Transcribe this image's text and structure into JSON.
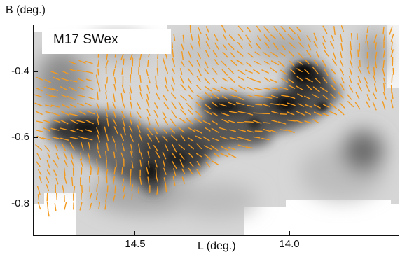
{
  "figure": {
    "map_label": "M17 SWex",
    "y_axis_label": "B (deg.)",
    "x_axis_label": "L (deg.)",
    "y_ticks": [
      "-0.4",
      "-0.6",
      "-0.8"
    ],
    "x_ticks": [
      "14.5",
      "14.0"
    ]
  },
  "colors": {
    "vector": "#f39a1e",
    "background_light": "#dcdcdc",
    "cloud_dark": "#1a1a1a"
  },
  "image_description_icons": [
    "polarization-vector-icon"
  ]
}
